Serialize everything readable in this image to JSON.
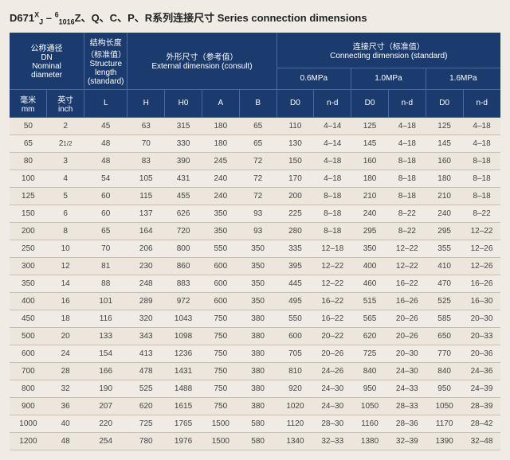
{
  "title_html": "D671<span class='sup'>X</span><span class='sub'>J</span> – <span class='sup'>6</span><span class='sub'>10</span><span class='sub'>16</span>Z、Q、C、P、R系列连接尺寸 Series connection dimensions",
  "colors": {
    "header_bg": "#1b3b6f",
    "header_text": "#ffffff",
    "header_border": "#4a6a9e",
    "body_bg": "#f0ebe4",
    "row_odd": "#ece6dc",
    "row_even": "#f0ebe4",
    "row_border": "#c9bfb0",
    "text": "#444444"
  },
  "headers": {
    "dn": {
      "cn": "公称通径",
      "en_dn": "DN",
      "en": "Nominal",
      "en2": "diameter"
    },
    "struct": {
      "cn": "结构长度",
      "cn2": "（标准值）",
      "en": "Structure length",
      "en2": "(standard)"
    },
    "ext": {
      "cn": "外形尺寸（参考值）",
      "en": "External dimension (consult)"
    },
    "conn": {
      "cn": "连接尺寸（标准值）",
      "en": "Connecting  dimension (standard)"
    },
    "p1": "0.6MPa",
    "p2": "1.0MPa",
    "p3": "1.6MPa",
    "mm_cn": "毫米",
    "mm_en": "mm",
    "inch_cn": "英寸",
    "inch_en": "inch",
    "L": "L",
    "H": "H",
    "H0": "H0",
    "A": "A",
    "B": "B",
    "D0": "D0",
    "nd": "n-d"
  },
  "rows": [
    {
      "mm": "50",
      "inch": "2",
      "L": "45",
      "H": "63",
      "H0": "315",
      "A": "180",
      "B": "65",
      "D0_1": "110",
      "nd_1": "4–14",
      "D0_2": "125",
      "nd_2": "4–18",
      "D0_3": "125",
      "nd_3": "4–18"
    },
    {
      "mm": "65",
      "inch": "2<span class='small-half'>1/2</span>",
      "L": "48",
      "H": "70",
      "H0": "330",
      "A": "180",
      "B": "65",
      "D0_1": "130",
      "nd_1": "4–14",
      "D0_2": "145",
      "nd_2": "4–18",
      "D0_3": "145",
      "nd_3": "4–18"
    },
    {
      "mm": "80",
      "inch": "3",
      "L": "48",
      "H": "83",
      "H0": "390",
      "A": "245",
      "B": "72",
      "D0_1": "150",
      "nd_1": "4–18",
      "D0_2": "160",
      "nd_2": "8–18",
      "D0_3": "160",
      "nd_3": "8–18"
    },
    {
      "mm": "100",
      "inch": "4",
      "L": "54",
      "H": "105",
      "H0": "431",
      "A": "240",
      "B": "72",
      "D0_1": "170",
      "nd_1": "4–18",
      "D0_2": "180",
      "nd_2": "8–18",
      "D0_3": "180",
      "nd_3": "8–18"
    },
    {
      "mm": "125",
      "inch": "5",
      "L": "60",
      "H": "115",
      "H0": "455",
      "A": "240",
      "B": "72",
      "D0_1": "200",
      "nd_1": "8–18",
      "D0_2": "210",
      "nd_2": "8–18",
      "D0_3": "210",
      "nd_3": "8–18"
    },
    {
      "mm": "150",
      "inch": "6",
      "L": "60",
      "H": "137",
      "H0": "626",
      "A": "350",
      "B": "93",
      "D0_1": "225",
      "nd_1": "8–18",
      "D0_2": "240",
      "nd_2": "8–22",
      "D0_3": "240",
      "nd_3": "8–22"
    },
    {
      "mm": "200",
      "inch": "8",
      "L": "65",
      "H": "164",
      "H0": "720",
      "A": "350",
      "B": "93",
      "D0_1": "280",
      "nd_1": "8–18",
      "D0_2": "295",
      "nd_2": "8–22",
      "D0_3": "295",
      "nd_3": "12–22"
    },
    {
      "mm": "250",
      "inch": "10",
      "L": "70",
      "H": "206",
      "H0": "800",
      "A": "550",
      "B": "350",
      "D0_1": "335",
      "nd_1": "12–18",
      "D0_2": "350",
      "nd_2": "12–22",
      "D0_3": "355",
      "nd_3": "12–26"
    },
    {
      "mm": "300",
      "inch": "12",
      "L": "81",
      "H": "230",
      "H0": "860",
      "A": "600",
      "B": "350",
      "D0_1": "395",
      "nd_1": "12–22",
      "D0_2": "400",
      "nd_2": "12–22",
      "D0_3": "410",
      "nd_3": "12–26"
    },
    {
      "mm": "350",
      "inch": "14",
      "L": "88",
      "H": "248",
      "H0": "883",
      "A": "600",
      "B": "350",
      "D0_1": "445",
      "nd_1": "12–22",
      "D0_2": "460",
      "nd_2": "16–22",
      "D0_3": "470",
      "nd_3": "16–26"
    },
    {
      "mm": "400",
      "inch": "16",
      "L": "101",
      "H": "289",
      "H0": "972",
      "A": "600",
      "B": "350",
      "D0_1": "495",
      "nd_1": "16–22",
      "D0_2": "515",
      "nd_2": "16–26",
      "D0_3": "525",
      "nd_3": "16–30"
    },
    {
      "mm": "450",
      "inch": "18",
      "L": "116",
      "H": "320",
      "H0": "1043",
      "A": "750",
      "B": "380",
      "D0_1": "550",
      "nd_1": "16–22",
      "D0_2": "565",
      "nd_2": "20–26",
      "D0_3": "585",
      "nd_3": "20–30"
    },
    {
      "mm": "500",
      "inch": "20",
      "L": "133",
      "H": "343",
      "H0": "1098",
      "A": "750",
      "B": "380",
      "D0_1": "600",
      "nd_1": "20–22",
      "D0_2": "620",
      "nd_2": "20–26",
      "D0_3": "650",
      "nd_3": "20–33"
    },
    {
      "mm": "600",
      "inch": "24",
      "L": "154",
      "H": "413",
      "H0": "1236",
      "A": "750",
      "B": "380",
      "D0_1": "705",
      "nd_1": "20–26",
      "D0_2": "725",
      "nd_2": "20–30",
      "D0_3": "770",
      "nd_3": "20–36"
    },
    {
      "mm": "700",
      "inch": "28",
      "L": "166",
      "H": "478",
      "H0": "1431",
      "A": "750",
      "B": "380",
      "D0_1": "810",
      "nd_1": "24–26",
      "D0_2": "840",
      "nd_2": "24–30",
      "D0_3": "840",
      "nd_3": "24–36"
    },
    {
      "mm": "800",
      "inch": "32",
      "L": "190",
      "H": "525",
      "H0": "1488",
      "A": "750",
      "B": "380",
      "D0_1": "920",
      "nd_1": "24–30",
      "D0_2": "950",
      "nd_2": "24–33",
      "D0_3": "950",
      "nd_3": "24–39"
    },
    {
      "mm": "900",
      "inch": "36",
      "L": "207",
      "H": "620",
      "H0": "1615",
      "A": "750",
      "B": "380",
      "D0_1": "1020",
      "nd_1": "24–30",
      "D0_2": "1050",
      "nd_2": "28–33",
      "D0_3": "1050",
      "nd_3": "28–39"
    },
    {
      "mm": "1000",
      "inch": "40",
      "L": "220",
      "H": "725",
      "H0": "1765",
      "A": "1500",
      "B": "580",
      "D0_1": "1120",
      "nd_1": "28–30",
      "D0_2": "1160",
      "nd_2": "28–36",
      "D0_3": "1170",
      "nd_3": "28–42"
    },
    {
      "mm": "1200",
      "inch": "48",
      "L": "254",
      "H": "780",
      "H0": "1976",
      "A": "1500",
      "B": "580",
      "D0_1": "1340",
      "nd_1": "32–33",
      "D0_2": "1380",
      "nd_2": "32–39",
      "D0_3": "1390",
      "nd_3": "32–48"
    }
  ]
}
